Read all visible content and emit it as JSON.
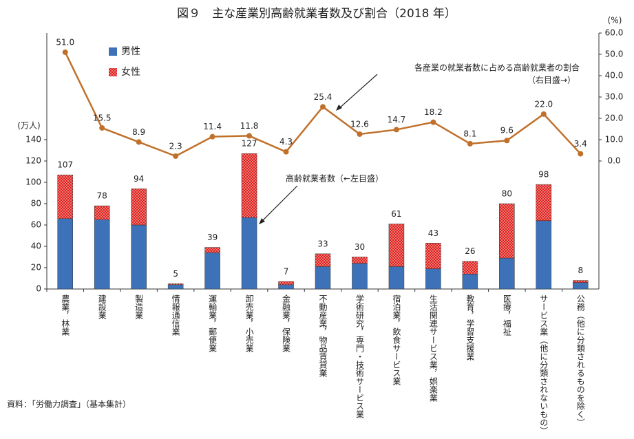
{
  "chart_data": {
    "type": "bar",
    "title": "図９　主な産業別高齢就業者数及び割合（2018 年）",
    "y_label": "(万人)",
    "y2_label": "(%)",
    "categories": [
      "農業，林業",
      "建設業",
      "製造業",
      "情報通信業",
      "運輸業，郵便業",
      "卸売業，小売業",
      "金融業，保険業",
      "不動産業，物品賃貸業",
      "学術研究，専門・技術サービス業",
      "宿泊業，飲食サービス業",
      "生活関連サービス業，娯楽業",
      "教育，学習支援業",
      "医療，福祉",
      "サービス業（他に分類されないもの）",
      "公務（他に分類されるものを除く）"
    ],
    "stacked": true,
    "series": [
      {
        "name": "男性",
        "type": "bar",
        "color": "#3e72b8",
        "values": [
          66,
          65,
          60,
          4,
          34,
          67,
          4,
          21,
          24,
          21,
          19,
          14,
          29,
          64,
          6
        ]
      },
      {
        "name": "女性",
        "type": "bar",
        "color": "#e0201c",
        "pattern": "dots",
        "values": [
          41,
          13,
          34,
          1,
          5,
          60,
          3,
          12,
          6,
          40,
          24,
          12,
          51,
          34,
          2
        ]
      },
      {
        "name": "各産業の就業者数に占める高齢就業者の割合",
        "type": "line",
        "axis": "y2",
        "color": "#c0702a",
        "values": [
          51.0,
          15.5,
          8.9,
          2.3,
          11.4,
          11.8,
          4.3,
          25.4,
          12.6,
          14.7,
          18.2,
          8.1,
          9.6,
          22.0,
          3.4
        ],
        "value_labels": [
          "51.0",
          "15.5",
          "8.9",
          "2.3",
          "11.4",
          "11.8",
          "4.3",
          "25.4",
          "12.6",
          "14.7",
          "18.2",
          "8.1",
          "9.6",
          "22.0",
          "3.4"
        ]
      }
    ],
    "totals": [
      107,
      78,
      94,
      5,
      39,
      127,
      7,
      33,
      30,
      61,
      43,
      26,
      80,
      98,
      8
    ],
    "ylim": [
      0,
      240
    ],
    "yticks": [
      0,
      20,
      40,
      60,
      80,
      100,
      120,
      140
    ],
    "y2lim": [
      -60,
      60
    ],
    "y2ticks": [
      {
        "value": 0,
        "label": "0.0"
      },
      {
        "value": 10,
        "label": "10.0"
      },
      {
        "value": 20,
        "label": "20.0"
      },
      {
        "value": 30,
        "label": "30.0"
      },
      {
        "value": 40,
        "label": "40.0"
      },
      {
        "value": 50,
        "label": "50.0"
      },
      {
        "value": 60,
        "label": "60.0"
      }
    ],
    "annotations": [
      "各産業の就業者数に占める高齢就業者の割合",
      "（右目盛→）",
      "高齢就業者数（←左目盛）"
    ],
    "source": "資料：「労働力調査」（基本集計）"
  }
}
